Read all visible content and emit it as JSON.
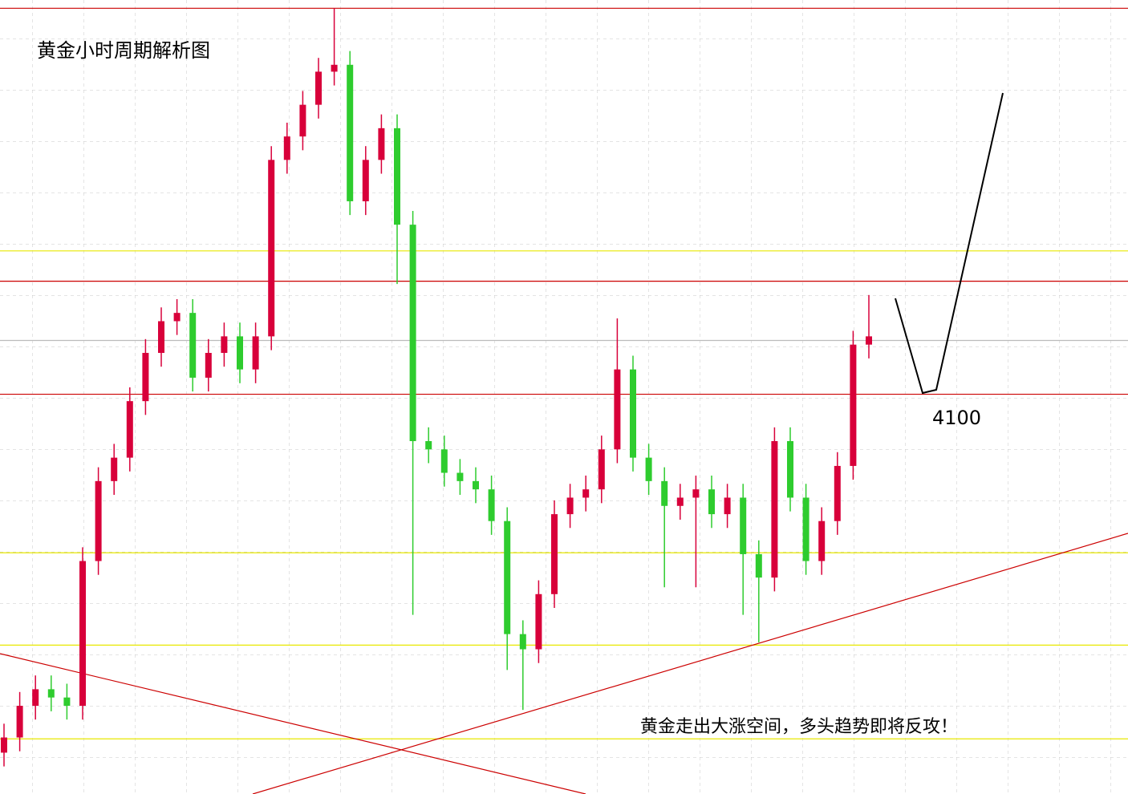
{
  "chart_data": {
    "type": "candlestick",
    "title": "黄金小时周期解析图",
    "annotations": [
      "4100",
      "黄金走出大涨空间，多头趋势即将反攻！"
    ],
    "ylim": [
      3810,
      4386
    ],
    "up_color": "#d8003a",
    "down_color": "#2ecc2e",
    "open": [
      3840,
      3851,
      3874,
      3886,
      3880,
      3874,
      3979,
      4037,
      4054,
      4095,
      4130,
      4153,
      4159,
      4112,
      4130,
      4142,
      4118,
      4142,
      4270,
      4287,
      4310,
      4334,
      4339,
      4240,
      4270,
      4293,
      4223,
      4066,
      4060,
      4043,
      4037,
      4031,
      4008,
      3926,
      3915,
      3955,
      4013,
      4025,
      4031,
      4060,
      4118,
      4054,
      4037,
      4019,
      4025,
      4031,
      4013,
      4025,
      3984,
      3967,
      4066,
      4025,
      3979,
      4008,
      4048,
      4136
    ],
    "close": [
      3851,
      3874,
      3886,
      3880,
      3874,
      3979,
      4037,
      4054,
      4095,
      4130,
      4153,
      4159,
      4112,
      4130,
      4142,
      4118,
      4142,
      4270,
      4287,
      4310,
      4334,
      4339,
      4240,
      4270,
      4293,
      4223,
      4066,
      4060,
      4043,
      4037,
      4031,
      4008,
      3926,
      3915,
      3955,
      4013,
      4025,
      4031,
      4060,
      4118,
      4054,
      4037,
      4019,
      4025,
      4031,
      4013,
      4025,
      3984,
      3967,
      4066,
      4025,
      3979,
      4008,
      4048,
      4136,
      4142
    ],
    "high": [
      3861,
      3884,
      3896,
      3896,
      3890,
      3989,
      4047,
      4064,
      4105,
      4140,
      4163,
      4169,
      4169,
      4140,
      4152,
      4152,
      4152,
      4280,
      4297,
      4320,
      4344,
      4380,
      4349,
      4280,
      4303,
      4303,
      4233,
      4076,
      4070,
      4053,
      4047,
      4041,
      4018,
      3936,
      3965,
      4023,
      4035,
      4041,
      4070,
      4155,
      4128,
      4064,
      4047,
      4035,
      4041,
      4041,
      4035,
      4035,
      3994,
      4076,
      4076,
      4035,
      4018,
      4058,
      4146,
      4172
    ],
    "low": [
      3830,
      3841,
      3864,
      3870,
      3864,
      3864,
      3969,
      4027,
      4044,
      4085,
      4120,
      4143,
      4102,
      4102,
      4120,
      4108,
      4108,
      4132,
      4260,
      4277,
      4300,
      4324,
      4230,
      4230,
      4260,
      4180,
      3940,
      4050,
      4033,
      4027,
      4021,
      3998,
      3900,
      3871,
      3905,
      3945,
      4003,
      4015,
      4021,
      4050,
      4044,
      4027,
      3960,
      4009,
      3960,
      4003,
      4003,
      3940,
      3920,
      3957,
      4015,
      3969,
      3969,
      3998,
      4038,
      4126
    ],
    "levels": [
      {
        "value": 4380,
        "color": "#cc0000"
      },
      {
        "value": 4204,
        "color": "#e8e800"
      },
      {
        "value": 4182,
        "color": "#cc0000"
      },
      {
        "value": 4139,
        "color": "#bbbbbb"
      },
      {
        "value": 4100,
        "color": "#cc0000"
      },
      {
        "value": 3985,
        "color": "#e8e800"
      },
      {
        "value": 3918,
        "color": "#e8e800"
      },
      {
        "value": 3850,
        "color": "#e8e800"
      }
    ]
  }
}
